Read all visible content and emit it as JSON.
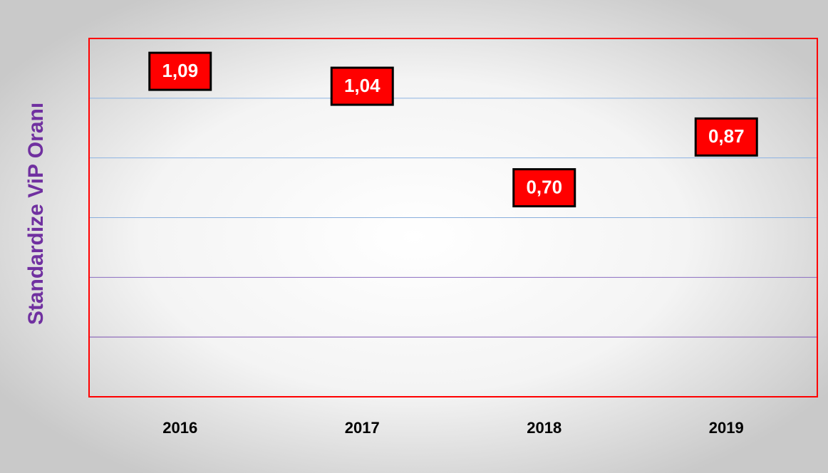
{
  "chart_data": {
    "type": "label_points",
    "y_axis_label": "Standardize ViP Oranı",
    "categories": [
      "2016",
      "2017",
      "2018",
      "2019"
    ],
    "values": [
      1.09,
      1.04,
      0.7,
      0.87
    ],
    "value_labels": [
      "1,09",
      "1,04",
      "0,70",
      "0,87"
    ],
    "color": "#ff0000",
    "ylim": [
      0,
      1.2
    ],
    "yticks": [
      0.2,
      0.4,
      0.6,
      0.8,
      1.0
    ],
    "grid": true
  }
}
